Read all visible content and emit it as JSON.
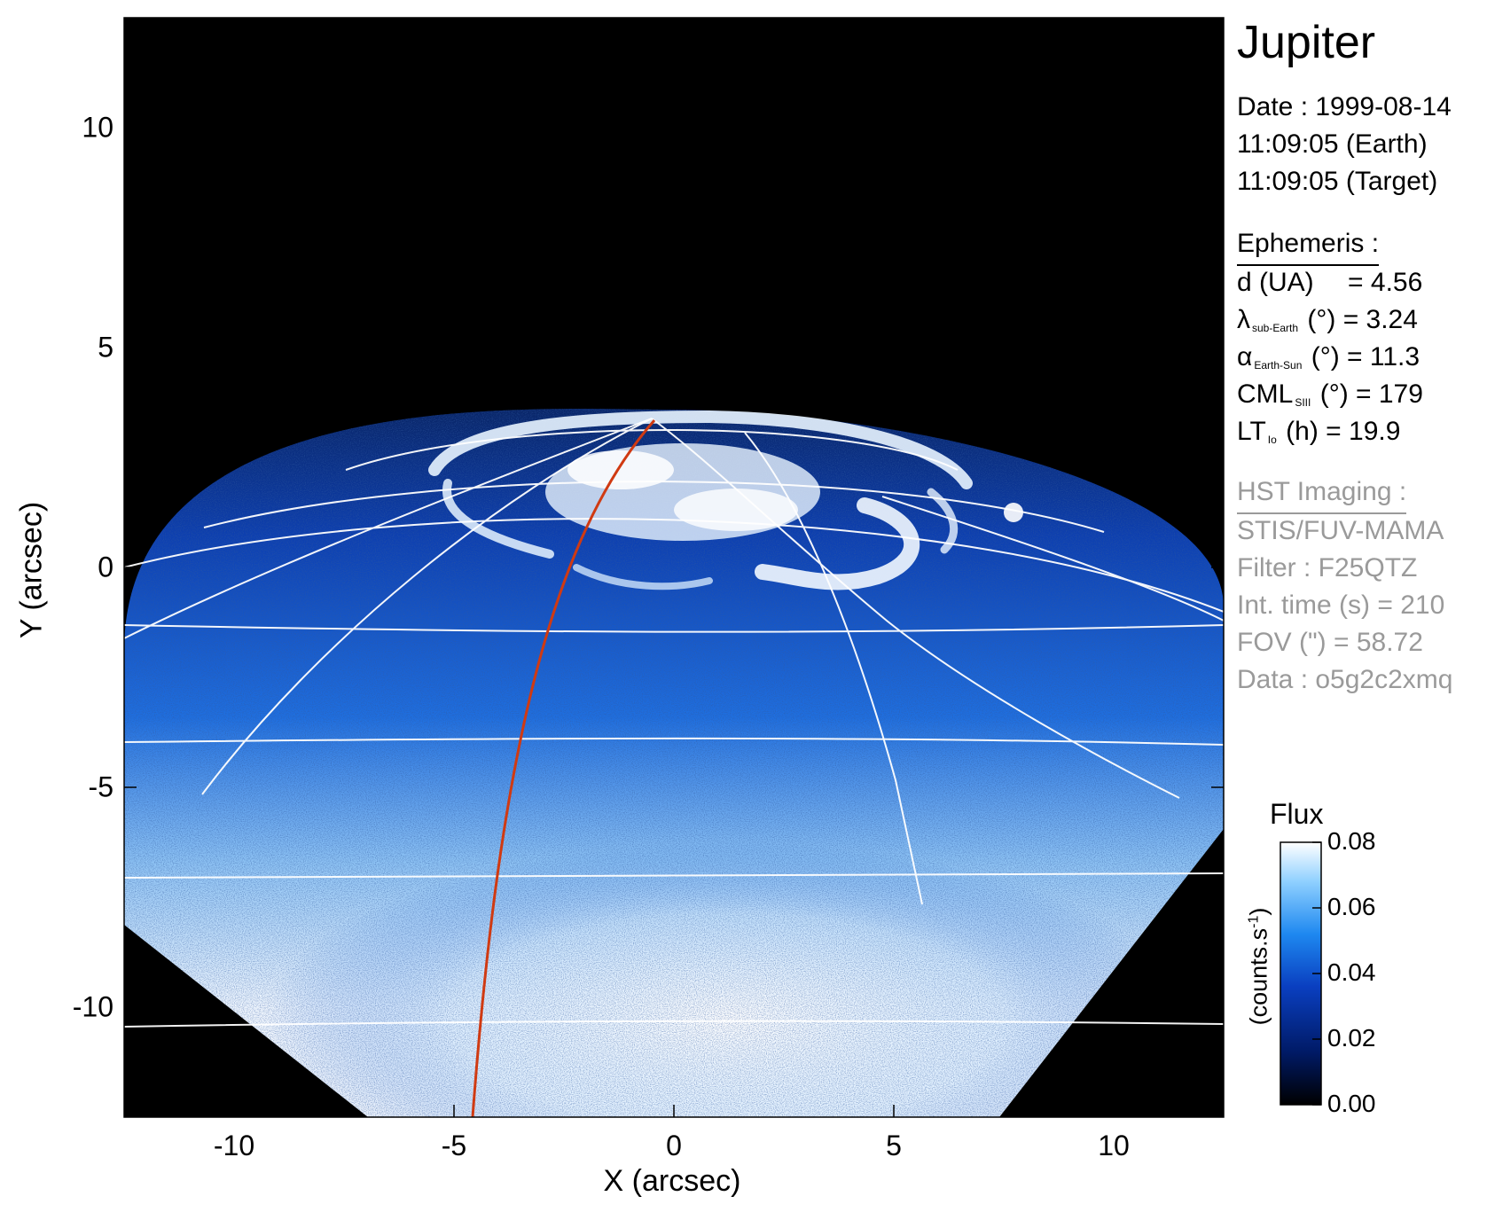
{
  "title": "Jupiter",
  "date": {
    "date_line": "Date : 1999-08-14",
    "earth_line": "11:09:05 (Earth)",
    "target_line": "11:09:05 (Target)"
  },
  "ephemeris": {
    "header": "Ephemeris :",
    "d_label": "d (UA)",
    "d_value": "= 4.56",
    "lambda_symbol": "λ",
    "lambda_sub": "sub-Earth",
    "lambda_unit_value": "(°) = 3.24",
    "alpha_symbol": "α",
    "alpha_sub": "Earth-Sun",
    "alpha_unit_value": "(°) = 11.3",
    "cml_symbol": "CML",
    "cml_sub": "SIII",
    "cml_unit_value": "(°) = 179",
    "lt_symbol": "LT",
    "lt_sub": "Io",
    "lt_unit_value": "(h) = 19.9"
  },
  "hst": {
    "header": "HST Imaging :",
    "instrument": "STIS/FUV-MAMA",
    "filter": "Filter : F25QTZ",
    "int_time": "Int. time (s) = 210",
    "fov": "FOV (\") = 58.72",
    "data": "Data : o5g2c2xmq"
  },
  "colorbar": {
    "title": "Flux",
    "unit": "(counts.s",
    "unit_sup": "-1",
    "unit_close": ")",
    "ticks": [
      "0.08",
      "0.06",
      "0.04",
      "0.02",
      "0.00"
    ],
    "tick_values": [
      0.08,
      0.06,
      0.04,
      0.02,
      0.0
    ],
    "range": [
      0.0,
      0.08
    ],
    "colors": [
      "#000000",
      "#001a66",
      "#0a3fc0",
      "#1e88f0",
      "#8fd0ff",
      "#ffffff"
    ]
  },
  "axes": {
    "xlabel": "X (arcsec)",
    "ylabel": "Y (arcsec)",
    "x_ticks": [
      "-10",
      "-5",
      "0",
      "5",
      "10"
    ],
    "x_tick_values": [
      -10,
      -5,
      0,
      5,
      10
    ],
    "y_ticks": [
      "10",
      "5",
      "0",
      "-5",
      "-10"
    ],
    "y_tick_values": [
      10,
      5,
      0,
      -5,
      -10
    ],
    "xlim": [
      -12.5,
      12.5
    ],
    "ylim": [
      -12.5,
      12.5
    ]
  },
  "colors": {
    "background": "#000000",
    "grid": "#ffffff",
    "meridian": "#d03a12",
    "aurora": "#e8f4ff"
  }
}
